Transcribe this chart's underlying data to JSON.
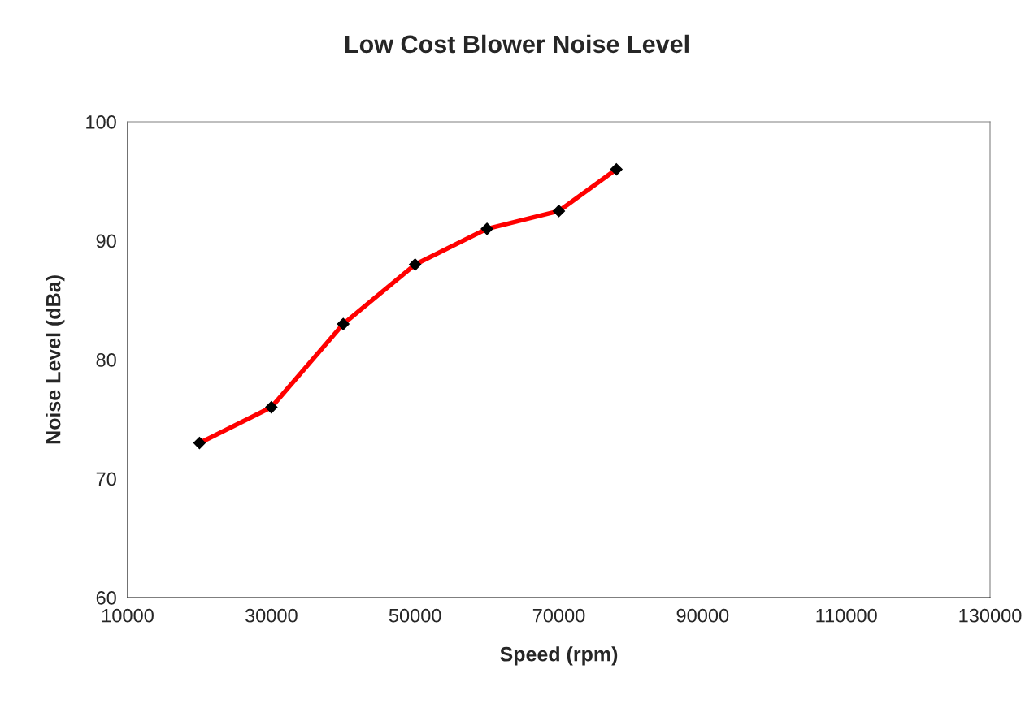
{
  "chart_data": {
    "type": "line",
    "title": "Low Cost Blower Noise Level",
    "xlabel": "Speed (rpm)",
    "ylabel": "Noise Level (dBa)",
    "x": [
      20000,
      30000,
      40000,
      50000,
      60000,
      70000,
      78000
    ],
    "series": [
      {
        "color": "#ff0000",
        "values": [
          73,
          76,
          83,
          88,
          91,
          92.5,
          96
        ]
      }
    ],
    "xlim": [
      10000,
      130000
    ],
    "xticks": [
      10000,
      30000,
      50000,
      70000,
      90000,
      110000,
      130000
    ],
    "ylim": [
      60,
      100
    ],
    "yticks": [
      60,
      70,
      80,
      90,
      100
    ],
    "grid": false,
    "legend": false,
    "marker": "diamond",
    "line_style": "solid"
  }
}
